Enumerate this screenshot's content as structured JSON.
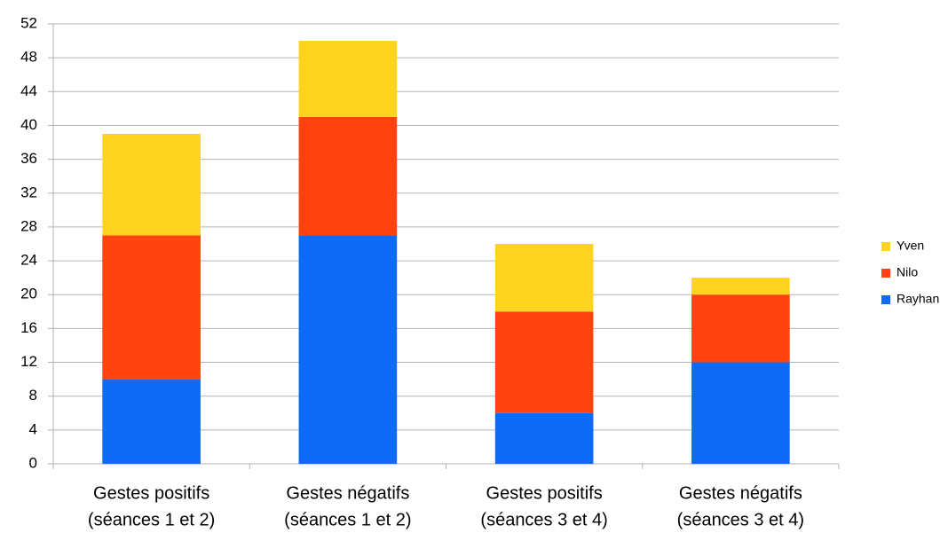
{
  "chart_data": {
    "type": "stacked_bar",
    "categories": [
      [
        "Gestes positifs",
        "(séances 1 et 2)"
      ],
      [
        "Gestes négatifs",
        "(séances 1 et 2)"
      ],
      [
        "Gestes positifs",
        "(séances 3 et 4)"
      ],
      [
        "Gestes négatifs",
        "(séances 3 et 4)"
      ]
    ],
    "series": [
      {
        "name": "Rayhan",
        "color": "#0f6af5",
        "values": [
          10,
          27,
          6,
          12
        ]
      },
      {
        "name": "Nilo",
        "color": "#ff420e",
        "values": [
          17,
          14,
          12,
          8
        ]
      },
      {
        "name": "Yven",
        "color": "#ffd320",
        "values": [
          12,
          9,
          8,
          2
        ]
      }
    ],
    "ylim": [
      0,
      52
    ],
    "yticks": [
      0,
      4,
      8,
      12,
      16,
      20,
      24,
      28,
      32,
      36,
      40,
      44,
      48,
      52
    ],
    "grid": true,
    "legend": "right"
  }
}
